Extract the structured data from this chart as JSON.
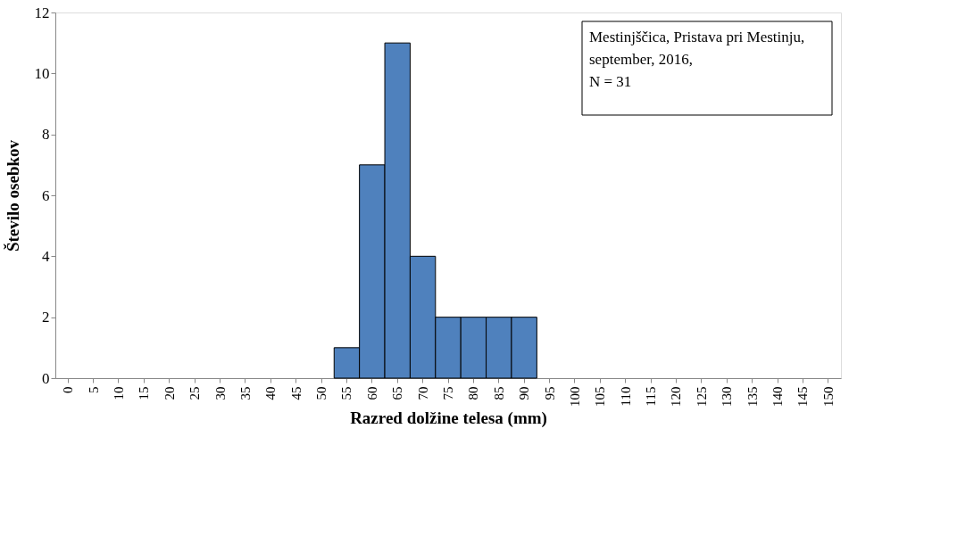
{
  "chart_data": {
    "type": "bar",
    "xlabel": "Razred dolžine telesa (mm)",
    "ylabel": "Število osebkov",
    "categories": [
      "0",
      "5",
      "10",
      "15",
      "20",
      "25",
      "30",
      "35",
      "40",
      "45",
      "50",
      "55",
      "60",
      "65",
      "70",
      "75",
      "80",
      "85",
      "90",
      "95",
      "100",
      "105",
      "110",
      "115",
      "120",
      "125",
      "130",
      "135",
      "140",
      "145",
      "150"
    ],
    "values": [
      0,
      0,
      0,
      0,
      0,
      0,
      0,
      0,
      0,
      0,
      0,
      1,
      7,
      11,
      4,
      2,
      2,
      2,
      2,
      0,
      0,
      0,
      0,
      0,
      0,
      0,
      0,
      0,
      0,
      0,
      0
    ],
    "color": "#4f81bd",
    "ylim": [
      0,
      12
    ],
    "yticks": [
      0,
      2,
      4,
      6,
      8,
      10,
      12
    ],
    "grid": false,
    "annotations": [
      "Mestinjščica, Pristava pri Mestinju,\nseptember, 2016,\nN = 31"
    ]
  }
}
